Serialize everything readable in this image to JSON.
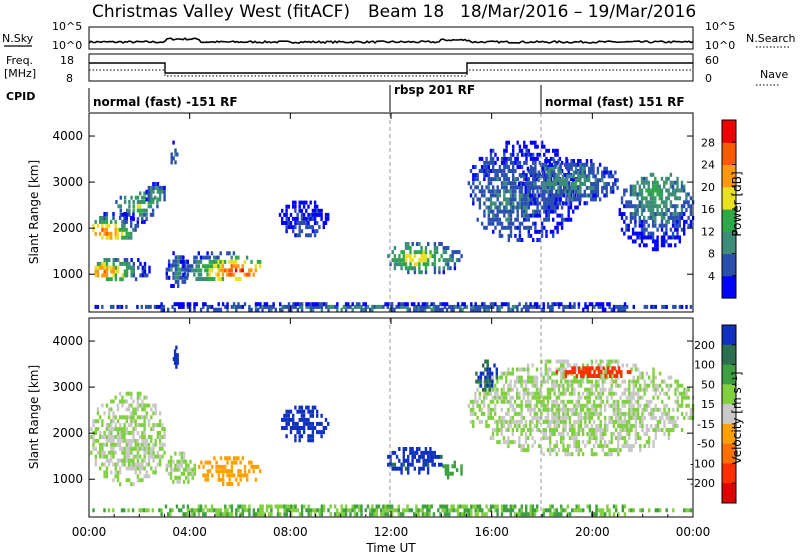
{
  "title": {
    "station": "Christmas Valley West (fitACF)",
    "beam": "Beam 18",
    "date_range": "18/Mar/2016 – 19/Mar/2016"
  },
  "noise_panel": {
    "left_label": "N.Sky",
    "right_label": "N.Search",
    "ticks_left": [
      "10^5",
      "10^0"
    ],
    "ticks_right": [
      "10^5",
      "10^0"
    ]
  },
  "freq_panel": {
    "left_label_1": "Freq.",
    "left_label_2": "[MHz]",
    "right_label": "Nave",
    "ticks_left": [
      "18",
      "8"
    ],
    "ticks_right": [
      "60",
      "0"
    ]
  },
  "cpid": {
    "label": "CPID",
    "segments": [
      {
        "label": "normal (fast) -151 RF",
        "start_hour": 0
      },
      {
        "label": "rbsp 201 RF",
        "start_hour": 12
      },
      {
        "label": "normal (fast) 151 RF",
        "start_hour": 18
      }
    ]
  },
  "x_axis": {
    "label": "Time UT",
    "ticks": [
      "00:00",
      "04:00",
      "08:00",
      "12:00",
      "16:00",
      "20:00",
      "00:00"
    ],
    "range_hours": [
      0,
      24
    ]
  },
  "chart_data": [
    {
      "type": "heatmap",
      "name": "power",
      "ylabel": "Slant Range [km]",
      "ylim": [
        180,
        4500
      ],
      "yticks": [
        1000,
        2000,
        3000,
        4000
      ],
      "colorbar": {
        "label": "Power [dB]",
        "ticks": [
          4,
          8,
          12,
          16,
          20,
          24,
          28
        ],
        "levels": [
          {
            "value": 0,
            "color": "#0000ff"
          },
          {
            "value": 4,
            "color": "#2a4fb0"
          },
          {
            "value": 8,
            "color": "#3c8c78"
          },
          {
            "value": 12,
            "color": "#2fa84a"
          },
          {
            "value": 16,
            "color": "#e8e020"
          },
          {
            "value": 20,
            "color": "#ff9a10"
          },
          {
            "value": 24,
            "color": "#ff5a00"
          },
          {
            "value": 28,
            "color": "#ee0000"
          }
        ]
      },
      "regions": [
        {
          "t": [
            0.0,
            2.2
          ],
          "r": [
            1750,
            2350
          ],
          "peak_time": 0.6,
          "peak_range": 1900,
          "peak": 26
        },
        {
          "t": [
            0.0,
            2.4
          ],
          "r": [
            850,
            1350
          ],
          "peak_time": 0.6,
          "peak_range": 1050,
          "peak": 26
        },
        {
          "t": [
            1.0,
            2.8
          ],
          "r": [
            2150,
            2800
          ],
          "peak_time": 2.0,
          "peak_range": 2500,
          "peak": 16
        },
        {
          "t": [
            2.2,
            3.0
          ],
          "r": [
            2500,
            3000
          ],
          "peak_time": 2.6,
          "peak_range": 2700,
          "peak": 14
        },
        {
          "t": [
            3.0,
            3.9
          ],
          "r": [
            700,
            1500
          ],
          "peak_time": 3.5,
          "peak_range": 1100,
          "peak": 12
        },
        {
          "t": [
            3.4,
            6.8
          ],
          "r": [
            850,
            1500
          ],
          "peak_time": 5.9,
          "peak_range": 1050,
          "peak": 30
        },
        {
          "t": [
            3.2,
            3.5
          ],
          "r": [
            3300,
            3900
          ],
          "peak_time": 3.35,
          "peak_range": 3600,
          "peak": 10
        },
        {
          "t": [
            7.5,
            9.5
          ],
          "r": [
            1800,
            2600
          ],
          "peak_time": 8.5,
          "peak_range": 2000,
          "peak": 6
        },
        {
          "t": [
            11.8,
            14.8
          ],
          "r": [
            1000,
            1700
          ],
          "peak_time": 13.0,
          "peak_range": 1350,
          "peak": 20
        },
        {
          "t": [
            15.0,
            19.5
          ],
          "r": [
            1700,
            3900
          ],
          "peak_time": 16.5,
          "peak_range": 2600,
          "peak": 9
        },
        {
          "t": [
            17.0,
            21.0
          ],
          "r": [
            2500,
            3500
          ],
          "peak_time": 19.0,
          "peak_range": 3000,
          "peak": 12
        },
        {
          "t": [
            21.0,
            24.0
          ],
          "r": [
            1500,
            3200
          ],
          "peak_time": 22.5,
          "peak_range": 2800,
          "peak": 14
        },
        {
          "t": [
            0.0,
            24.0
          ],
          "r": [
            200,
            380
          ],
          "peak_time": 12.0,
          "peak_range": 260,
          "peak": 10
        }
      ]
    },
    {
      "type": "heatmap",
      "name": "velocity",
      "ylabel": "Slant Range [km]",
      "ylim": [
        180,
        4500
      ],
      "yticks": [
        1000,
        2000,
        3000,
        4000
      ],
      "colorbar": {
        "label": "Velocity [m s⁻¹]",
        "ticks": [
          200,
          100,
          50,
          15,
          -15,
          -50,
          -100,
          -200
        ],
        "levels": [
          {
            "value": 250,
            "color": "#1030c0"
          },
          {
            "value": 150,
            "color": "#2a7050"
          },
          {
            "value": 75,
            "color": "#3ca040"
          },
          {
            "value": 30,
            "color": "#80d040"
          },
          {
            "value": 0,
            "color": "#c8c8c8"
          },
          {
            "value": -30,
            "color": "#ffa000"
          },
          {
            "value": -75,
            "color": "#ff7000"
          },
          {
            "value": -150,
            "color": "#ff3000"
          },
          {
            "value": -250,
            "color": "#e00000"
          }
        ]
      },
      "regions": [
        {
          "t": [
            0.0,
            3.0
          ],
          "r": [
            850,
            2900
          ],
          "velocity": 0
        },
        {
          "t": [
            3.0,
            4.2
          ],
          "r": [
            900,
            1600
          ],
          "velocity": 0
        },
        {
          "t": [
            4.2,
            6.8
          ],
          "r": [
            850,
            1500
          ],
          "velocity": -40
        },
        {
          "t": [
            3.3,
            3.5
          ],
          "r": [
            3400,
            3900
          ],
          "velocity": 220
        },
        {
          "t": [
            7.5,
            9.5
          ],
          "r": [
            1800,
            2600
          ],
          "velocity": 200
        },
        {
          "t": [
            11.8,
            14.0
          ],
          "r": [
            1100,
            1700
          ],
          "velocity": 180
        },
        {
          "t": [
            14.0,
            14.8
          ],
          "r": [
            1000,
            1400
          ],
          "velocity": 60
        },
        {
          "t": [
            15.0,
            24.0
          ],
          "r": [
            1500,
            3600
          ],
          "velocity": 0
        },
        {
          "t": [
            18.5,
            21.5
          ],
          "r": [
            3200,
            3450
          ],
          "velocity": -200
        },
        {
          "t": [
            15.3,
            16.2
          ],
          "r": [
            2900,
            3600
          ],
          "velocity": 150
        },
        {
          "t": [
            0.0,
            24.0
          ],
          "r": [
            200,
            450
          ],
          "velocity": 30
        }
      ]
    }
  ]
}
